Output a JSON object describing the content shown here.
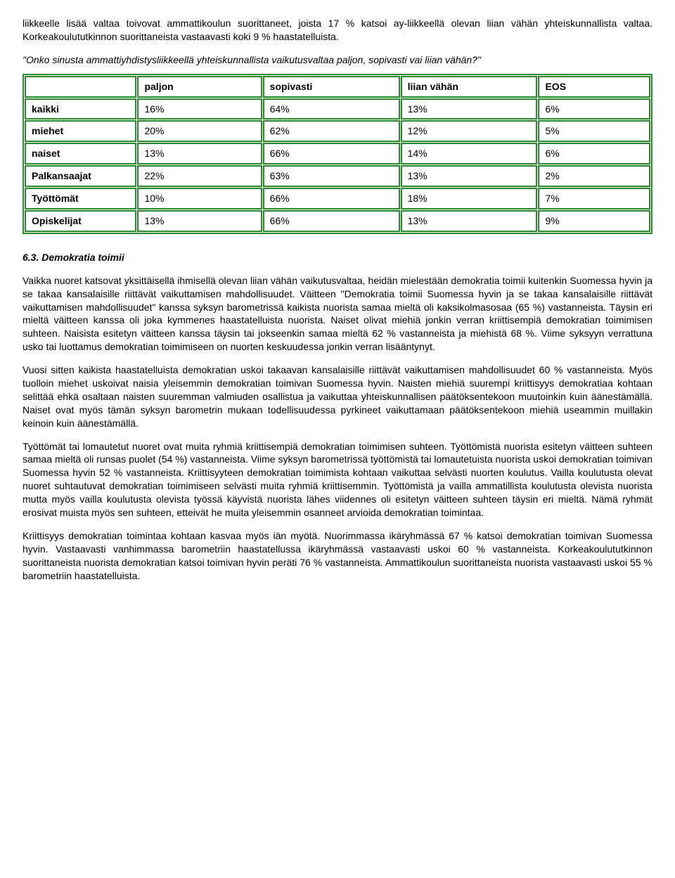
{
  "intro_para": "liikkeelle lisää valtaa toivovat ammattikoulun suorittaneet, joista 17 % katsoi ay-liikkeellä olevan liian vähän yhteiskunnallista valtaa. Korkeakoulututkinnon suorittaneista vastaavasti koki 9 % haastatelluista.",
  "quote_line": "\"Onko sinusta ammattiyhdistysliikkeellä yhteiskunnallista vaikutusvaltaa paljon, sopivasti vai liian vähän?\"",
  "table": {
    "headers": [
      "",
      "paljon",
      "sopivasti",
      "liian vähän",
      "EOS"
    ],
    "rows": [
      [
        "kaikki",
        "16%",
        "64%",
        "13%",
        "6%"
      ],
      [
        "miehet",
        "20%",
        "62%",
        "12%",
        "5%"
      ],
      [
        "naiset",
        "13%",
        "66%",
        "14%",
        "6%"
      ],
      [
        "Palkansaajat",
        "22%",
        "63%",
        "13%",
        "2%"
      ],
      [
        "Työttömät",
        "10%",
        "66%",
        "18%",
        "7%"
      ],
      [
        "Opiskelijat",
        "13%",
        "66%",
        "13%",
        "9%"
      ]
    ],
    "border_color": "#2a8a2a",
    "background_color": "#ffffff"
  },
  "section_heading": "6.3. Demokratia toimii",
  "paragraphs": [
    "Vaikka nuoret katsovat yksittäisellä ihmisellä olevan liian vähän vaikutusvaltaa, heidän mielestään demokratia toimii kuitenkin Suomessa hyvin ja se takaa kansalaisille riittävät vaikuttamisen mahdollisuudet. Väitteen \"Demokratia toimii Suomessa hyvin ja se takaa kansalaisille riittävät vaikuttamisen mahdollisuudet\" kanssa syksyn barometrissä kaikista nuorista samaa mieltä oli kaksikolmasosaa (65 %) vastanneista. Täysin eri mieltä väitteen kanssa oli joka kymmenes haastatelluista nuorista. Naiset olivat miehiä jonkin verran kriittisempiä demokratian toimimisen suhteen. Naisista esitetyn väitteen kanssa täysin tai jokseenkin samaa mieltä 62 % vastanneista ja miehistä 68 %. Viime syksyyn verrattuna usko tai luottamus demokratian toimimiseen on nuorten keskuudessa jonkin verran lisääntynyt.",
    "Vuosi sitten kaikista haastatelluista demokratian uskoi takaavan kansalaisille riittävät vaikuttamisen mahdollisuudet 60 % vastanneista. Myös tuolloin miehet uskoivat naisia yleisemmin demokratian toimivan Suomessa hyvin. Naisten miehiä suurempi kriittisyys demokratiaa kohtaan selittää ehkä osaltaan naisten suuremman valmiuden osallistua ja vaikuttaa yhteiskunnallisen päätöksentekoon muutoinkin kuin äänestämällä. Naiset ovat myös tämän syksyn barometrin mukaan todellisuudessa pyrkineet vaikuttamaan päätöksentekoon miehiä useammin muillakin keinoin kuin äänestämällä.",
    "Työttömät tai lomautetut nuoret ovat muita ryhmiä kriittisempiä demokratian toimimisen suhteen. Työttömistä nuorista esitetyn väitteen suhteen samaa mieltä oli runsas puolet (54 %) vastanneista. Viime syksyn barometrissä työttömistä tai lomautetuista nuorista uskoi demokratian toimivan Suomessa hyvin 52 % vastanneista. Kriittisyyteen demokratian toimimista kohtaan vaikuttaa selvästi nuorten koulutus. Vailla koulutusta olevat nuoret suhtautuvat demokratian toimimiseen selvästi muita ryhmiä kriittisemmin. Työttömistä ja vailla ammatillista koulutusta olevista nuorista mutta myös vailla koulutusta olevista työssä käyvistä nuorista lähes viidennes oli esitetyn väitteen suhteen täysin eri mieltä. Nämä ryhmät erosivat muista myös sen suhteen, etteivät he muita yleisemmin osanneet arvioida demokratian toimintaa.",
    "Kriittisyys demokratian toimintaa kohtaan kasvaa myös iän myötä. Nuorimmassa ikäryhmässä 67 % katsoi demokratian toimivan Suomessa hyvin. Vastaavasti vanhimmassa barometriin haastatellussa ikäryhmässä vastaavasti uskoi 60 % vastanneista. Korkeakoulututkinnon suorittaneista nuorista demokratian katsoi toimivan hyvin peräti 76 % vastanneista. Ammattikoulun suorittaneista nuorista vastaavasti uskoi 55 % barometriin haastatelluista."
  ]
}
